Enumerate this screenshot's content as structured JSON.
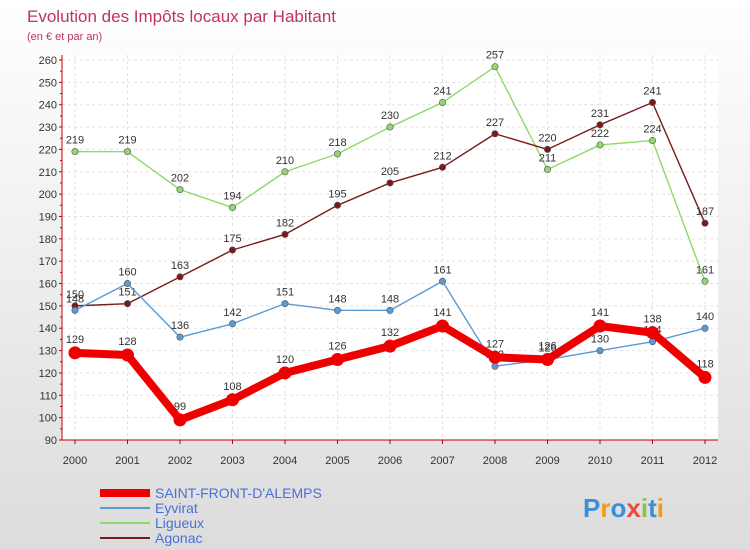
{
  "chart_data": {
    "type": "line",
    "title": "Evolution des Impôts locaux par Habitant",
    "subtitle": "(en € et par an)",
    "categories": [
      "2000",
      "2001",
      "2002",
      "2003",
      "2004",
      "2005",
      "2006",
      "2007",
      "2008",
      "2009",
      "2010",
      "2011",
      "2012"
    ],
    "ylim": [
      90,
      260
    ],
    "yticks": [
      90,
      100,
      110,
      120,
      130,
      140,
      150,
      160,
      170,
      180,
      190,
      200,
      210,
      220,
      230,
      240,
      250,
      260
    ],
    "grid": true,
    "legend_position": "bottom-left",
    "series": [
      {
        "name": "Ligueux",
        "color": "#8fd96a",
        "values": [
          219,
          219,
          202,
          194,
          210,
          218,
          230,
          241,
          257,
          211,
          222,
          224,
          161
        ]
      },
      {
        "name": "Agonac",
        "color": "#7a1a1a",
        "values": [
          150,
          151,
          163,
          175,
          182,
          195,
          205,
          212,
          227,
          220,
          231,
          241,
          187
        ]
      },
      {
        "name": "Eyvirat",
        "color": "#5b9bd5",
        "values": [
          148,
          160,
          136,
          142,
          151,
          148,
          148,
          161,
          123,
          126,
          130,
          134,
          140
        ]
      },
      {
        "name": "SAINT-FRONT-D'ALEMPS",
        "color": "#ee0000",
        "values": [
          129,
          128,
          99,
          108,
          120,
          126,
          132,
          141,
          127,
          126,
          141,
          138,
          118
        ]
      }
    ],
    "legend_order": [
      "SAINT-FRONT-D'ALEMPS",
      "Eyvirat",
      "Ligueux",
      "Agonac"
    ]
  },
  "logo": {
    "text": "Proxiti"
  }
}
